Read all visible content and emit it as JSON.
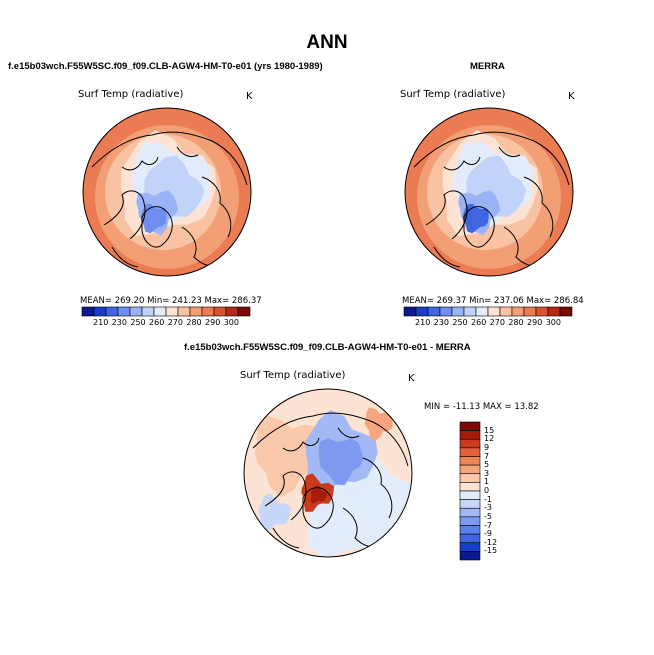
{
  "title": "ANN",
  "panels": [
    {
      "heading": "f.e15b03wch.F55W5SC.f09_f09.CLB-AGW4-HM-T0-e01 (yrs 1980-1989)",
      "variable": "Surf Temp (radiative)",
      "units": "K",
      "stats": "MEAN= 269.20   Min= 241.23   Max= 286.37"
    },
    {
      "heading": "MERRA",
      "variable": "Surf Temp (radiative)",
      "units": "K",
      "stats": "MEAN= 269.37   Min= 237.06   Max= 286.84"
    },
    {
      "heading": "f.e15b03wch.F55W5SC.f09_f09.CLB-AGW4-HM-T0-e01 - MERRA",
      "variable": "Surf Temp (radiative)",
      "units": "K",
      "stats": "MIN = -11.13  MAX =  13.82"
    }
  ],
  "colors": {
    "abs_palette": [
      "#0a1a8c",
      "#1a3dc9",
      "#3f66e0",
      "#6e8ff0",
      "#9ab3f7",
      "#c2d3f9",
      "#e3ecfb",
      "#fde3d3",
      "#f9c2a2",
      "#f39f76",
      "#ea7b52",
      "#d9532f",
      "#b52814",
      "#7a0a05"
    ],
    "diff_palette": [
      "#0a1a8c",
      "#1a3dc9",
      "#3f66e0",
      "#5d7fe9",
      "#7e9af0",
      "#a3b9f5",
      "#c7d7f9",
      "#e3ecfb",
      "#fde3d3",
      "#fbc8ac",
      "#f6a67f",
      "#ef8457",
      "#e2603a",
      "#c93b1f",
      "#a51c0c",
      "#7a0a05"
    ]
  },
  "chart_data": [
    {
      "type": "heatmap",
      "title": "f.e15b03wch.F55W5SC.f09_f09.CLB-AGW4-HM-T0-e01 (yrs 1980-1989)",
      "subtitle": "Surf Temp (radiative)",
      "units": "K",
      "projection": "north polar stereographic",
      "colorbar_ticks": [
        "210",
        "230",
        "250",
        "260",
        "270",
        "280",
        "290",
        "300"
      ],
      "mean": 269.2,
      "min": 241.23,
      "max": 286.37
    },
    {
      "type": "heatmap",
      "title": "MERRA",
      "subtitle": "Surf Temp (radiative)",
      "units": "K",
      "projection": "north polar stereographic",
      "colorbar_ticks": [
        "210",
        "230",
        "250",
        "260",
        "270",
        "280",
        "290",
        "300"
      ],
      "mean": 269.37,
      "min": 237.06,
      "max": 286.84
    },
    {
      "type": "heatmap",
      "title": "f.e15b03wch.F55W5SC.f09_f09.CLB-AGW4-HM-T0-e01 - MERRA",
      "subtitle": "Surf Temp (radiative)",
      "units": "K",
      "projection": "north polar stereographic",
      "colorbar_ticks": [
        "15",
        "12",
        "9",
        "7",
        "5",
        "3",
        "1",
        "0",
        "-1",
        "-3",
        "-5",
        "-7",
        "-9",
        "-12",
        "-15"
      ],
      "min": -11.13,
      "max": 13.82
    }
  ]
}
